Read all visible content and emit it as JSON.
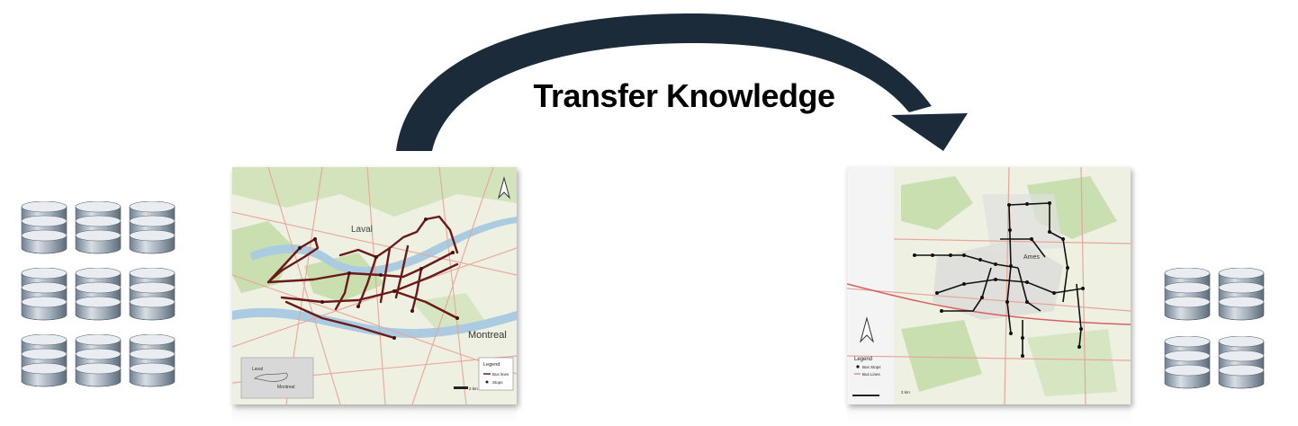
{
  "diagram": {
    "arrow_label": "Transfer Knowledge",
    "source_map": {
      "city_labels": [
        "Laval",
        "Montreal"
      ],
      "legend_title": "Legend",
      "legend_items": [
        "Bus lines",
        "Stops"
      ],
      "scale_label": "2 km",
      "inset_labels": [
        "Laval",
        "Montreal"
      ]
    },
    "target_map": {
      "city_labels": [
        "Ames"
      ],
      "legend_title": "Legend",
      "legend_items": [
        "Bus Stops",
        "Bus Lines"
      ],
      "scale_label": "2 km"
    },
    "left_database_stack": {
      "rows": 3,
      "cols": 3
    },
    "right_database_stack": {
      "rows": 2,
      "cols": 2
    },
    "colors": {
      "arrow": "#1c2b3a",
      "bus_line_source": "#6b1a1a",
      "bus_stop_target": "#111111",
      "map_background": "#eef0e2",
      "map_green": "#c9dfb0",
      "map_road": "#e8a59a",
      "map_water": "#aacbe0"
    }
  }
}
